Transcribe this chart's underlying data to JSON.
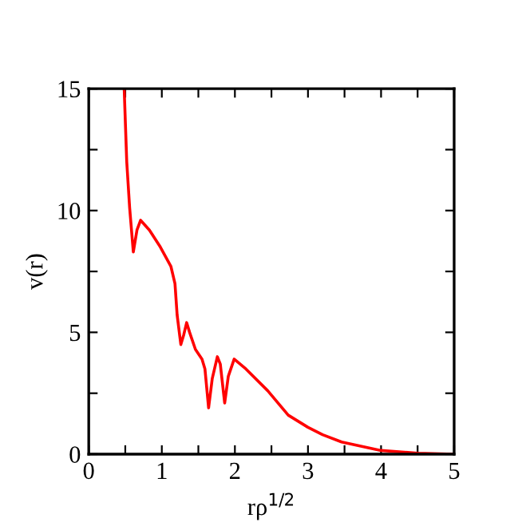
{
  "chart_data": {
    "type": "line",
    "xlabel": "rρ$^{1/2}$",
    "ylabel": "v(r)",
    "x": [
      0.485,
      0.52,
      0.56,
      0.61,
      0.66,
      0.71,
      0.83,
      0.98,
      1.125,
      1.18,
      1.21,
      1.26,
      1.3,
      1.34,
      1.38,
      1.46,
      1.55,
      1.59,
      1.64,
      1.69,
      1.76,
      1.8,
      1.86,
      1.91,
      1.99,
      2.15,
      2.45,
      2.73,
      3.0,
      3.2,
      3.46,
      4.0,
      4.5,
      5.0
    ],
    "series": [
      {
        "color": "#ff0000",
        "values": [
          15,
          12.0,
          10.1,
          8.3,
          9.2,
          9.6,
          9.2,
          8.5,
          7.7,
          7.0,
          5.7,
          4.5,
          4.9,
          5.4,
          5.0,
          4.3,
          3.9,
          3.5,
          1.9,
          3.1,
          4.0,
          3.7,
          2.1,
          3.2,
          3.9,
          3.5,
          2.6,
          1.6,
          1.1,
          0.8,
          0.5,
          0.15,
          0.04,
          0
        ]
      }
    ],
    "xlim": [
      0,
      5
    ],
    "ylim": [
      0,
      15
    ],
    "xticks": [
      0,
      {
        "value": 0.5,
        "label": null
      },
      1,
      {
        "value": 1.5,
        "label": null
      },
      2,
      {
        "value": 2.5,
        "label": null
      },
      3,
      {
        "value": 3.5,
        "label": null
      },
      4,
      {
        "value": 4.5,
        "label": null
      },
      5
    ],
    "yticks": [
      0,
      {
        "value": 2.5,
        "label": null
      },
      5,
      {
        "value": 7.5,
        "label": null
      },
      10,
      {
        "value": 12.5,
        "label": null
      },
      15
    ],
    "grid": false,
    "legend": false,
    "marker": "none",
    "line_style": "solid"
  }
}
